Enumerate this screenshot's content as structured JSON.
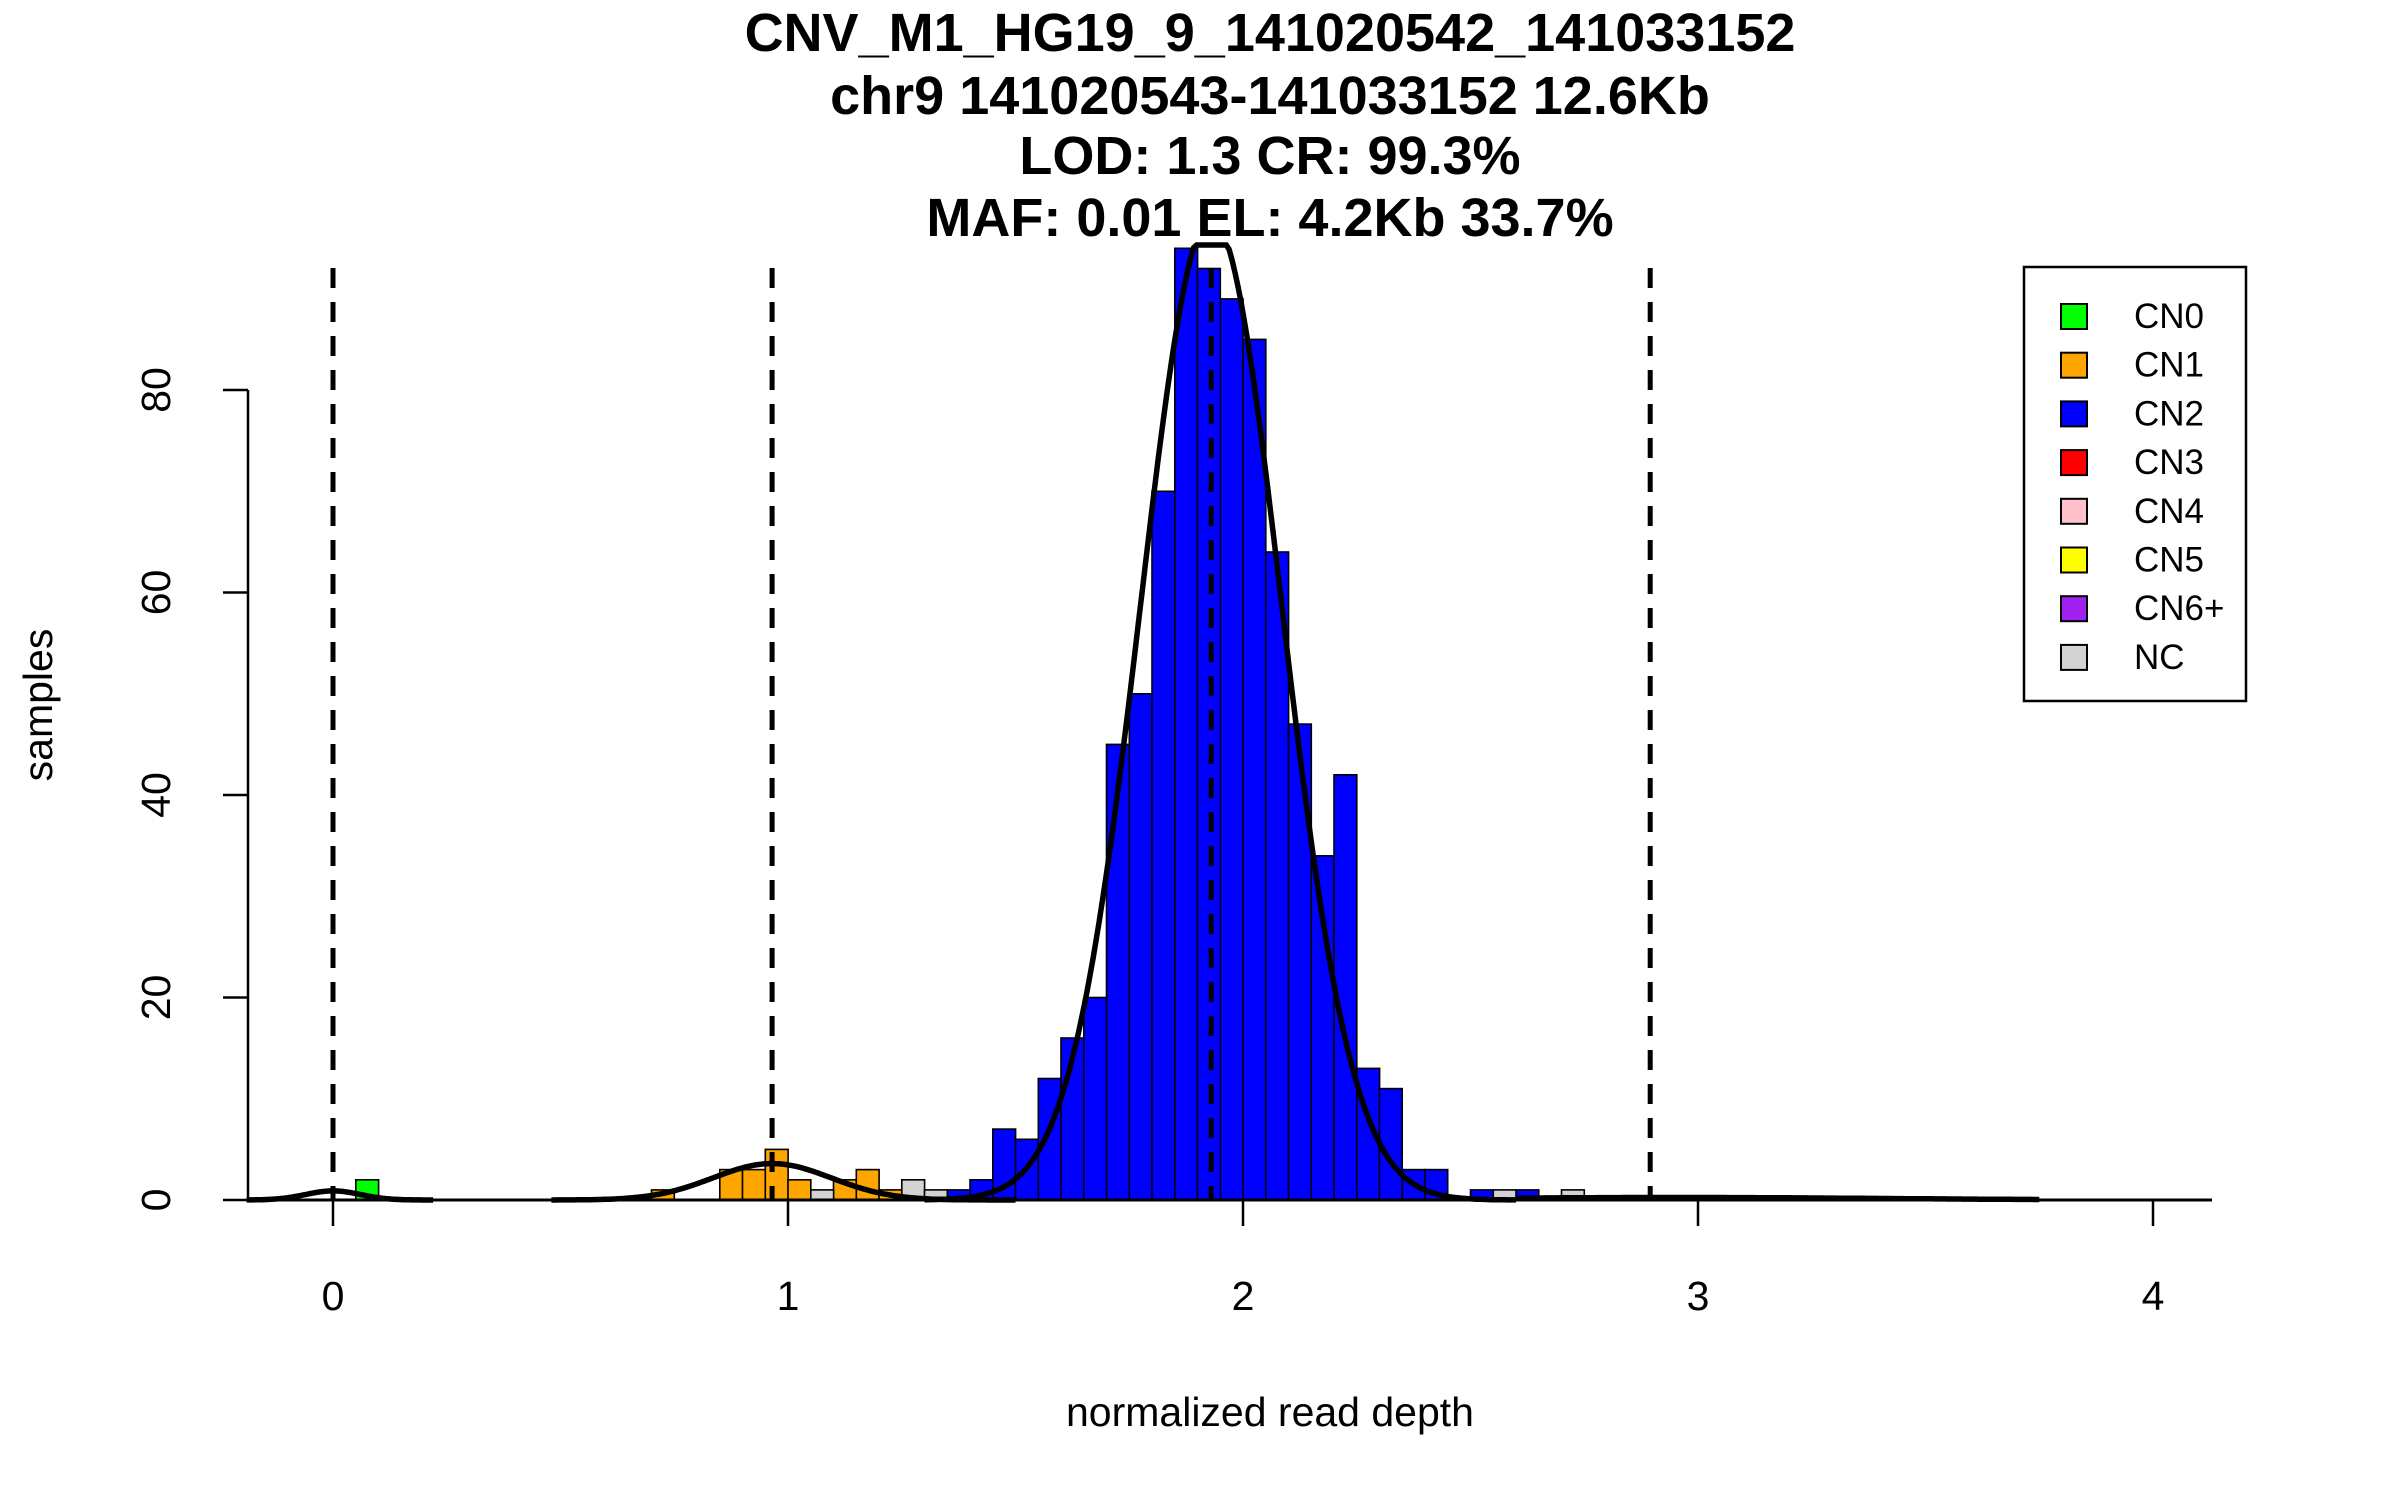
{
  "chart_data": {
    "type": "bar",
    "title_lines": [
      "CNV_M1_HG19_9_141020542_141033152",
      "chr9 141020543-141033152 12.6Kb",
      "LOD: 1.3 CR: 99.3%",
      "MAF: 0.01 EL: 4.2Kb 33.7%"
    ],
    "xlabel": "normalized read depth",
    "ylabel": "samples",
    "xlim": [
      -0.19,
      4.13
    ],
    "ylim": [
      0,
      94
    ],
    "x_ticks": [
      0,
      1,
      2,
      3,
      4
    ],
    "y_ticks": [
      0,
      20,
      40,
      60,
      80
    ],
    "bin_width": 0.05,
    "grid": false,
    "legend_position": "top-right",
    "vlines": [
      0.0,
      0.965,
      1.93,
      2.895
    ],
    "legend": [
      {
        "label": "CN0",
        "color": "#00ff00"
      },
      {
        "label": "CN1",
        "color": "#ffa500"
      },
      {
        "label": "CN2",
        "color": "#0000ff"
      },
      {
        "label": "CN3",
        "color": "#ff0000"
      },
      {
        "label": "CN4",
        "color": "#ffc0cb"
      },
      {
        "label": "CN5",
        "color": "#ffff00"
      },
      {
        "label": "CN6+",
        "color": "#a020f0"
      },
      {
        "label": "NC",
        "color": "#d3d3d3"
      }
    ],
    "series": [
      {
        "name": "CN0",
        "color": "#00ff00",
        "bins": [
          [
            0.05,
            2
          ]
        ]
      },
      {
        "name": "CN1",
        "color": "#ffa500",
        "bins": [
          [
            0.7,
            1
          ],
          [
            0.85,
            3
          ],
          [
            0.9,
            3
          ],
          [
            0.95,
            5
          ],
          [
            1.0,
            2
          ],
          [
            1.1,
            2
          ],
          [
            1.15,
            3
          ],
          [
            1.2,
            1
          ]
        ]
      },
      {
        "name": "CN2",
        "color": "#0000ff",
        "bins": [
          [
            1.35,
            1
          ],
          [
            1.4,
            2
          ],
          [
            1.45,
            7
          ],
          [
            1.5,
            6
          ],
          [
            1.55,
            12
          ],
          [
            1.6,
            16
          ],
          [
            1.65,
            20
          ],
          [
            1.7,
            45
          ],
          [
            1.75,
            50
          ],
          [
            1.8,
            70
          ],
          [
            1.85,
            94
          ],
          [
            1.9,
            92
          ],
          [
            1.95,
            89
          ],
          [
            2.0,
            85
          ],
          [
            2.05,
            64
          ],
          [
            2.1,
            47
          ],
          [
            2.15,
            34
          ],
          [
            2.2,
            42
          ],
          [
            2.25,
            13
          ],
          [
            2.3,
            11
          ],
          [
            2.35,
            3
          ],
          [
            2.4,
            3
          ],
          [
            2.5,
            1
          ],
          [
            2.6,
            1
          ]
        ]
      },
      {
        "name": "NC",
        "color": "#d3d3d3",
        "bins": [
          [
            1.05,
            1
          ],
          [
            1.25,
            2
          ],
          [
            1.3,
            1
          ],
          [
            2.55,
            1
          ],
          [
            2.7,
            1
          ]
        ]
      }
    ],
    "density_curves": [
      {
        "mu": 0.0,
        "sigma": 0.06,
        "peak": 0.9,
        "range": [
          -0.19,
          0.22
        ]
      },
      {
        "mu": 0.965,
        "sigma": 0.13,
        "peak": 3.6,
        "range": [
          0.48,
          1.5
        ]
      },
      {
        "mu": 1.93,
        "sigma": 0.155,
        "peak": 97,
        "range": [
          1.3,
          2.6
        ]
      },
      {
        "mu": 2.95,
        "sigma": 0.45,
        "peak": 0.25,
        "range": [
          2.6,
          3.75
        ]
      }
    ]
  }
}
